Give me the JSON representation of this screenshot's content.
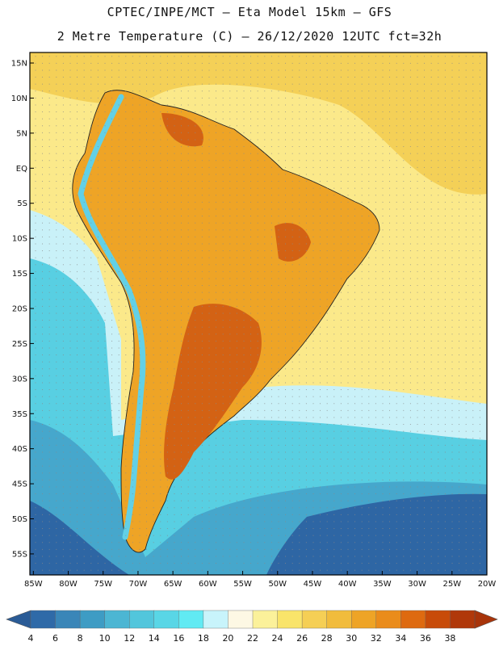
{
  "header": {
    "title_line1": "CPTEC/INPE/MCT –  Eta Model 15km – GFS",
    "title_line2": "2 Metre Temperature (C) – 26/12/2020 12UTC fct=32h"
  },
  "map": {
    "lat_ticks": [
      "15N",
      "10N",
      "5N",
      "EQ",
      "5S",
      "10S",
      "15S",
      "20S",
      "25S",
      "30S",
      "35S",
      "40S",
      "45S",
      "50S",
      "55S"
    ],
    "lon_ticks": [
      "85W",
      "80W",
      "75W",
      "70W",
      "65W",
      "60W",
      "55W",
      "50W",
      "45W",
      "40W",
      "35W",
      "30W",
      "25W",
      "20W"
    ],
    "lat_values": [
      15,
      10,
      5,
      0,
      -5,
      -10,
      -15,
      -20,
      -25,
      -30,
      -35,
      -40,
      -45,
      -50,
      -55
    ],
    "lon_values": [
      -85,
      -80,
      -75,
      -70,
      -65,
      -60,
      -55,
      -50,
      -45,
      -40,
      -35,
      -30,
      -25,
      -20
    ],
    "extent": {
      "lon_min": -85.5,
      "lon_max": -20,
      "lat_min": -58,
      "lat_max": 16.5
    }
  },
  "colorbar": {
    "labels": [
      "4",
      "6",
      "8",
      "10",
      "12",
      "14",
      "16",
      "18",
      "20",
      "22",
      "24",
      "26",
      "28",
      "30",
      "32",
      "34",
      "36",
      "38"
    ],
    "colors": [
      "#2f6aa8",
      "#3a86b8",
      "#3e9cc4",
      "#4cb6d3",
      "#52c6dc",
      "#59d6e6",
      "#61eaf3",
      "#c8f4fb",
      "#fdf8e4",
      "#fbf19a",
      "#f9e46a",
      "#f5cf55",
      "#f1bc3c",
      "#eea426",
      "#ea8c1b",
      "#de6a10",
      "#c84b09",
      "#b0380a"
    ],
    "low_color": "#2a5b96",
    "high_color": "#a8340a"
  },
  "map_colors": {
    "ocean_cold": "#2e66a4",
    "ocean_mid": "#46a7cc",
    "ocean_cool": "#58cfe2",
    "ocean_pale": "#c9f1f8",
    "ocean_warm": "#fbe98a",
    "ocean_hot": "#f4d057",
    "land_warm": "#eea426",
    "land_hot": "#d36214",
    "andes": "#62d0e6"
  }
}
